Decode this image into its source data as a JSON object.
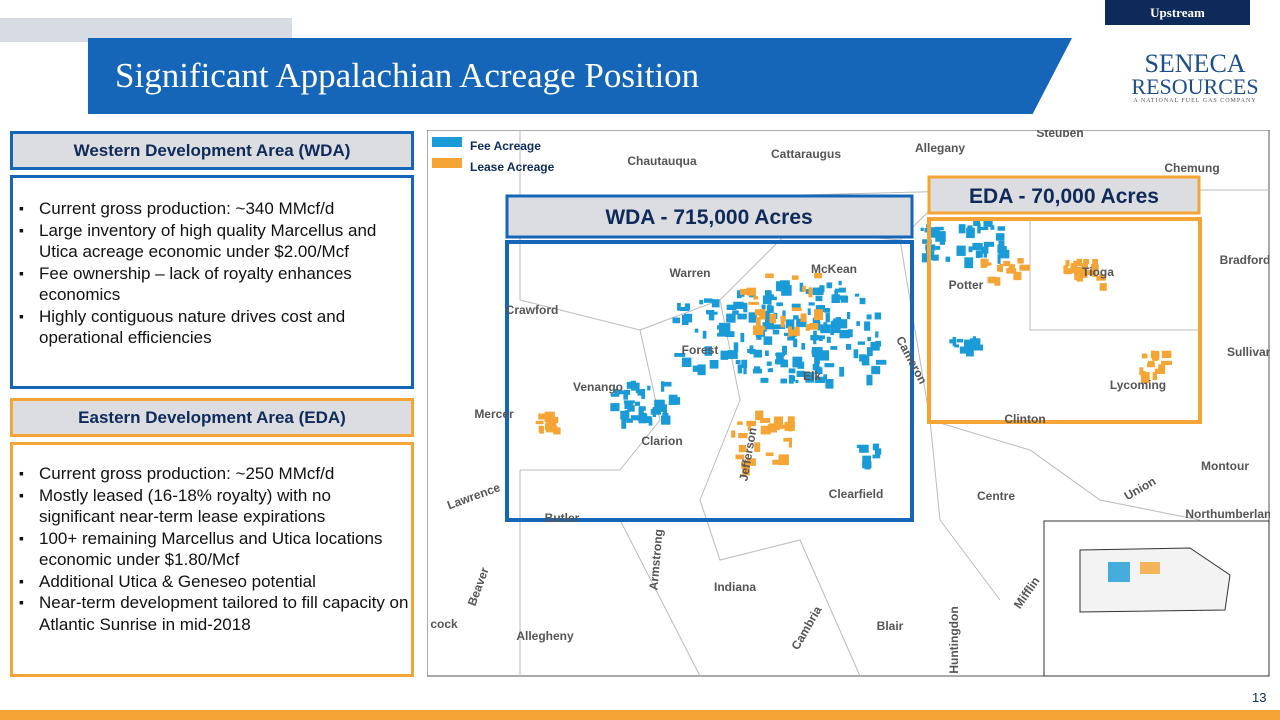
{
  "header": {
    "section": "Upstream",
    "title": "Significant Appalachian Acreage Position",
    "logo": {
      "name": "SENECA",
      "name2": "RESOURCES",
      "tagline": "A NATIONAL FUEL GAS COMPANY"
    }
  },
  "wda": {
    "heading": "Western Development Area (WDA)",
    "bullets": [
      "Current gross production: ~340 MMcf/d",
      "Large inventory of high quality Marcellus and Utica acreage economic under $2.00/Mcf",
      "Fee ownership – lack of royalty enhances economics",
      "Highly contiguous nature drives cost and operational efficiencies"
    ]
  },
  "eda": {
    "heading": "Eastern Development Area (EDA)",
    "bullets": [
      "Current gross production: ~250 MMcf/d",
      "Mostly leased (16-18% royalty) with no significant near-term lease expirations",
      "100+ remaining Marcellus and Utica locations economic under $1.80/Mcf",
      "Additional Utica & Geneseo potential",
      "Near-term development tailored to fill capacity on Atlantic Sunrise in mid-2018"
    ]
  },
  "map": {
    "legend": [
      "Fee Acreage",
      "Lease Acreage"
    ],
    "wda_label": "WDA - 715,000 Acres",
    "eda_label": "EDA - 70,000 Acres",
    "counties": [
      "Steuben",
      "Cattaraugus",
      "Allegany",
      "Chautauqua",
      "Chemung",
      "Bradford",
      "Warren",
      "McKean",
      "Tioga",
      "Potter",
      "Crawford",
      "Forest",
      "Cameron",
      "Sullivan",
      "Elk",
      "Venango",
      "Lycoming",
      "Mercer",
      "Clinton",
      "Clarion",
      "Jefferson",
      "Montour",
      "Clearfield",
      "Centre",
      "Union",
      "Lawrence",
      "Butler",
      "Northumberland",
      "Armstrong",
      "Beaver",
      "Indiana",
      "Mifflin",
      "Allegheny",
      "Cambria",
      "Blair",
      "Huntingdon",
      "cock"
    ]
  },
  "page_number": "13"
}
